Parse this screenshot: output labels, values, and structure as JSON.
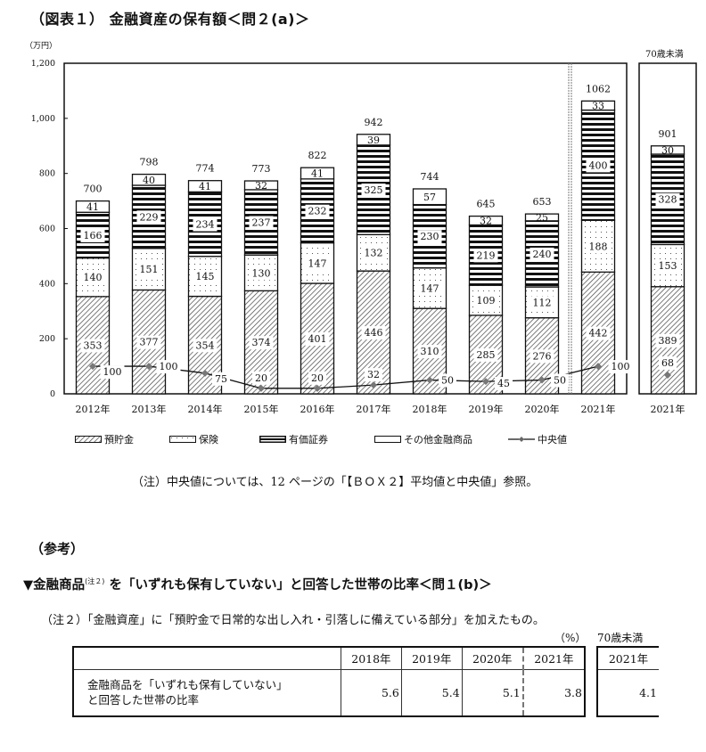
{
  "header": {
    "title": "（図表１） 金融資産の保有額＜問２(a)＞",
    "unit": "（万円）",
    "under70_label": "70歳未満"
  },
  "legend": {
    "items": [
      {
        "key": "savings",
        "label": "預貯金",
        "icon": "diagonal-hatch-swatch"
      },
      {
        "key": "insurance",
        "label": "保険",
        "icon": "dotted-swatch"
      },
      {
        "key": "securities",
        "label": "有価証券",
        "icon": "horizontal-stripe-swatch"
      },
      {
        "key": "other",
        "label": "その他金融商品",
        "icon": "blank-swatch"
      },
      {
        "key": "median",
        "label": "中央値",
        "icon": "diamond-line-marker"
      }
    ]
  },
  "notes": {
    "median_note": "（注）中央値については、12 ページの「【ＢＯＸ２】平均値と中央値」参照。"
  },
  "reference": {
    "heading": "（参考）",
    "subtitle_pre": "▼金融商品",
    "subtitle_sup": "(注２)",
    "subtitle_post": "を「いずれも保有していない」と回答した世帯の比率＜問１(b)＞",
    "note2": "（注２）「金融資産」に「預貯金で日常的な出し入れ・引落しに備えている部分」を加えたもの。",
    "percent_unit": "（%）",
    "under70_label": "70歳未満",
    "table": {
      "columns": [
        "2018年",
        "2019年",
        "2020年",
        "2021年"
      ],
      "under70_column": "2021年",
      "row_label_line1": "金融商品を「いずれも保有していない」",
      "row_label_line2": "と回答した世帯の比率",
      "values": [
        "5.6",
        "5.4",
        "5.1",
        "3.8"
      ],
      "under70_value": "4.1"
    }
  },
  "chart_data": {
    "type": "bar",
    "stacked": true,
    "title": "（図表１） 金融資産の保有額＜問２(a)＞",
    "ylabel": "（万円）",
    "xlabel": "",
    "ylim": [
      0,
      1200
    ],
    "yticks": [
      "0",
      "200",
      "400",
      "600",
      "800",
      "1,000",
      "1,200"
    ],
    "categories": [
      "2012年",
      "2013年",
      "2014年",
      "2015年",
      "2016年",
      "2017年",
      "2018年",
      "2019年",
      "2020年",
      "2021年",
      "2021年（70歳未満）"
    ],
    "category_labels": [
      "2012年",
      "2013年",
      "2014年",
      "2015年",
      "2016年",
      "2017年",
      "2018年",
      "2019年",
      "2020年",
      "2021年",
      "2021年"
    ],
    "totals": [
      700,
      798,
      774,
      773,
      822,
      942,
      744,
      645,
      653,
      1062,
      901
    ],
    "series": [
      {
        "name": "預貯金",
        "values": [
          353,
          377,
          354,
          374,
          401,
          446,
          310,
          285,
          276,
          442,
          389
        ]
      },
      {
        "name": "保険",
        "values": [
          140,
          151,
          145,
          130,
          147,
          132,
          147,
          109,
          112,
          188,
          153
        ]
      },
      {
        "name": "有価証券",
        "values": [
          166,
          229,
          234,
          237,
          232,
          325,
          230,
          219,
          240,
          400,
          328
        ]
      },
      {
        "name": "その他金融商品",
        "values": [
          41,
          40,
          41,
          32,
          41,
          39,
          57,
          32,
          25,
          33,
          30
        ]
      },
      {
        "name": "中央値",
        "type": "line",
        "values": [
          100,
          100,
          75,
          20,
          20,
          32,
          50,
          45,
          50,
          100,
          68
        ]
      }
    ],
    "legend_position": "bottom",
    "grid": false
  }
}
